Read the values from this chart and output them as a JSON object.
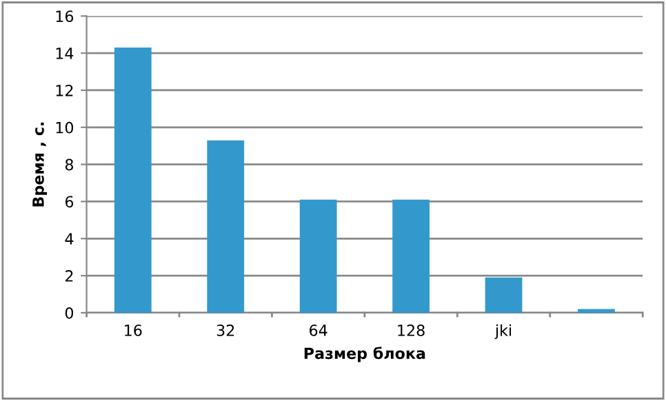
{
  "chart_data": {
    "type": "bar",
    "xlabel": "Размер блока",
    "ylabel": "Время , с.",
    "categories": [
      "16",
      "32",
      "64",
      "128",
      "jki",
      null
    ],
    "values": [
      14.3,
      9.3,
      6.1,
      6.1,
      1.9,
      0.2
    ],
    "color": "#3399cc",
    "ylim": [
      0,
      16
    ],
    "yticks": [
      0,
      2,
      4,
      6,
      8,
      10,
      12,
      14,
      16
    ],
    "grid": "y",
    "legend": false
  }
}
